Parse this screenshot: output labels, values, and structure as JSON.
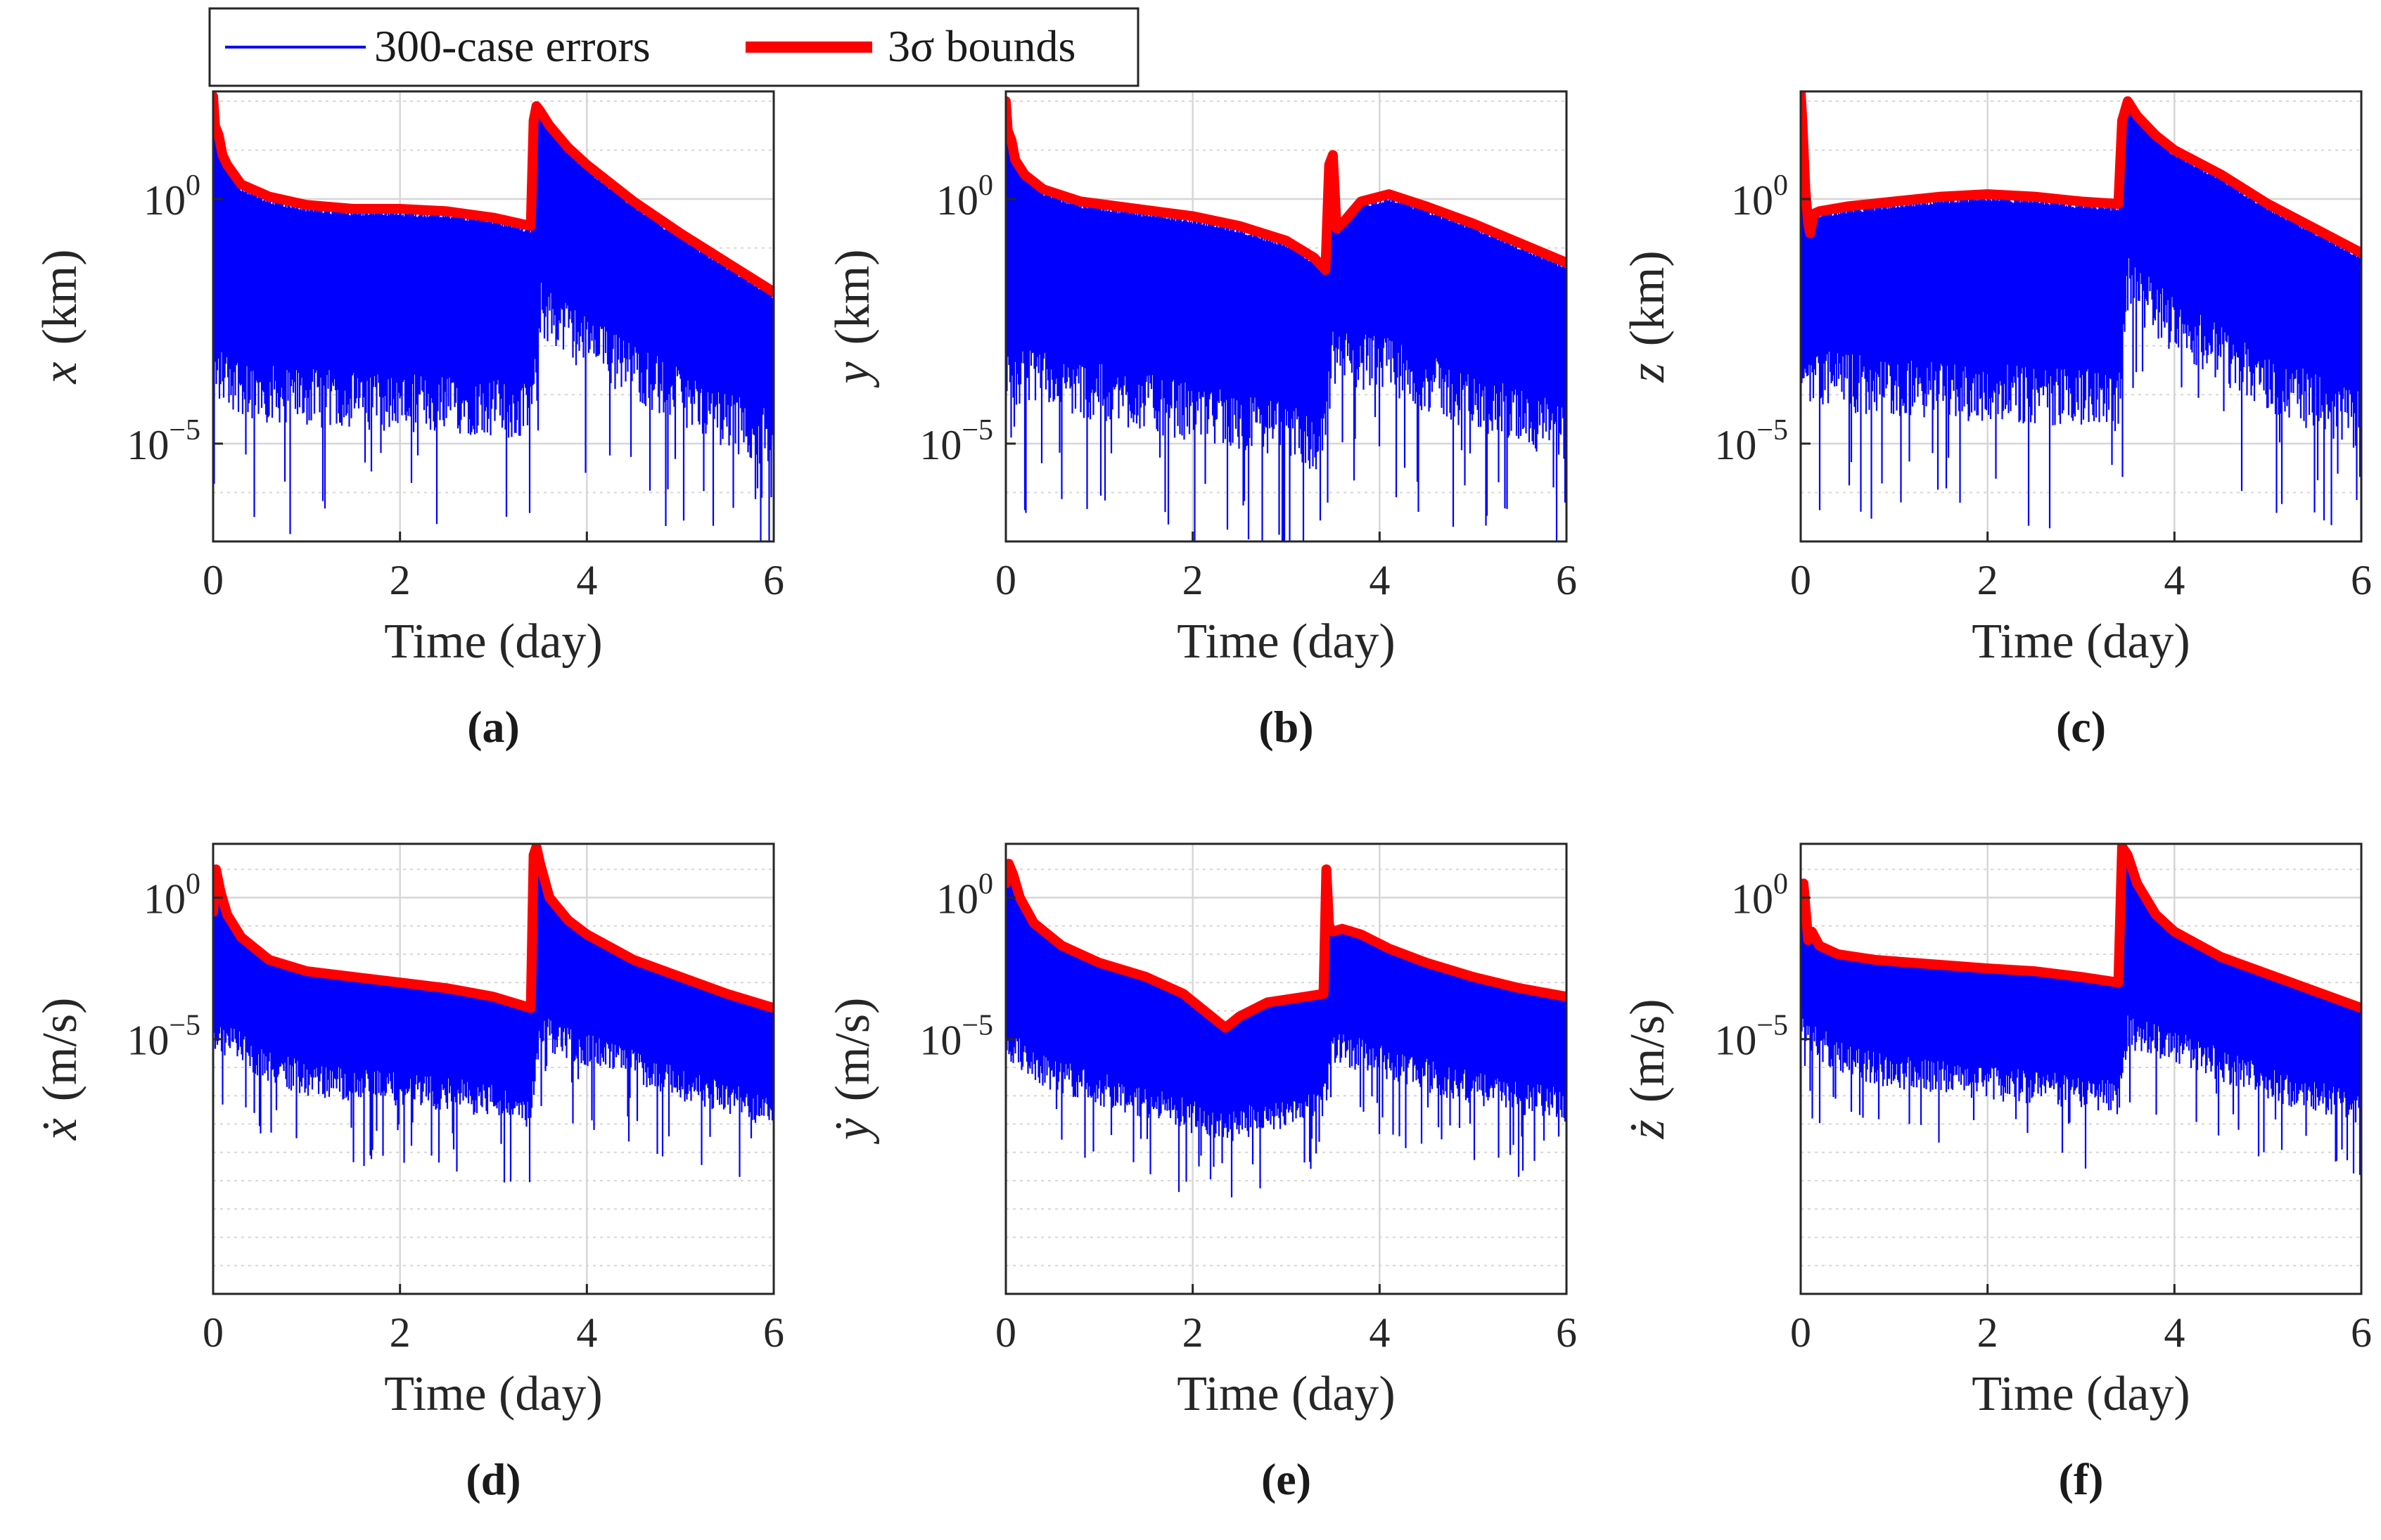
{
  "legend": {
    "errors_label": "300-case errors",
    "bounds_label": "3σ bounds",
    "location": "top-left"
  },
  "colors": {
    "errors": "#0000ff",
    "bounds": "#ff0000",
    "grid": "#d6d6d6",
    "axes": "#262626"
  },
  "chart_data": [
    {
      "panel_label": "(a)",
      "type": "line",
      "scale": "log",
      "ylabel_var": "x",
      "ylabel_unit": "(km)",
      "xlabel": "Time (day)",
      "xlim": [
        0,
        6
      ],
      "xticks": [
        0,
        2,
        4,
        6
      ],
      "ylim_log10": [
        -7,
        2.2
      ],
      "yticks": [
        {
          "exp": 0,
          "label_base": "10",
          "label_exp": "0"
        },
        {
          "exp": -5,
          "label_base": "10",
          "label_exp": "−5"
        }
      ],
      "series": [
        {
          "name": "3σ bounds",
          "t": [
            0,
            0.02,
            0.06,
            0.1,
            0.15,
            0.3,
            0.6,
            1.0,
            1.5,
            2.0,
            2.5,
            3.0,
            3.4,
            3.43,
            3.46,
            3.5,
            3.6,
            3.8,
            4.0,
            4.5,
            5.0,
            5.5,
            6.0
          ],
          "log10": [
            2.1,
            1.5,
            1.3,
            0.9,
            0.7,
            0.3,
            0.05,
            -0.12,
            -0.2,
            -0.2,
            -0.25,
            -0.38,
            -0.55,
            1.6,
            1.9,
            1.8,
            1.5,
            1.05,
            0.7,
            -0.05,
            -0.7,
            -1.3,
            -1.9
          ]
        }
      ],
      "error_floor_log10": {
        "t": [
          0,
          0.5,
          1.0,
          2.0,
          3.0,
          3.4,
          3.5,
          4.0,
          5.0,
          6.0
        ],
        "log10": [
          -3.8,
          -4.2,
          -4.3,
          -4.4,
          -4.5,
          -4.6,
          -2.5,
          -3.2,
          -4.3,
          -5.2
        ]
      }
    },
    {
      "panel_label": "(b)",
      "type": "line",
      "scale": "log",
      "ylabel_var": "y",
      "ylabel_unit": "(km)",
      "xlabel": "Time (day)",
      "xlim": [
        0,
        6
      ],
      "xticks": [
        0,
        2,
        4,
        6
      ],
      "ylim_log10": [
        -7,
        2.2
      ],
      "yticks": [
        {
          "exp": 0,
          "label_base": "10",
          "label_exp": "0"
        },
        {
          "exp": -5,
          "label_base": "10",
          "label_exp": "−5"
        }
      ],
      "series": [
        {
          "name": "3σ bounds",
          "t": [
            0,
            0.02,
            0.06,
            0.1,
            0.2,
            0.4,
            0.8,
            1.2,
            1.6,
            2.0,
            2.5,
            3.0,
            3.3,
            3.42,
            3.46,
            3.5,
            3.54,
            3.6,
            3.8,
            4.1,
            4.5,
            5.0,
            5.5,
            6.0
          ],
          "log10": [
            2.0,
            1.4,
            1.2,
            0.8,
            0.5,
            0.2,
            -0.05,
            -0.15,
            -0.25,
            -0.35,
            -0.55,
            -0.85,
            -1.2,
            -1.45,
            0.7,
            0.9,
            -0.6,
            -0.5,
            -0.05,
            0.1,
            -0.15,
            -0.5,
            -0.9,
            -1.3
          ]
        }
      ],
      "error_floor_log10": {
        "t": [
          0,
          0.5,
          1.0,
          2.0,
          3.0,
          3.4,
          3.5,
          4.0,
          5.0,
          6.0
        ],
        "log10": [
          -3.8,
          -4.0,
          -4.2,
          -4.6,
          -5.0,
          -5.3,
          -3.5,
          -3.6,
          -4.4,
          -5.0
        ]
      }
    },
    {
      "panel_label": "(c)",
      "type": "line",
      "scale": "log",
      "ylabel_var": "z",
      "ylabel_unit": "(km)",
      "xlabel": "Time (day)",
      "xlim": [
        0,
        6
      ],
      "xticks": [
        0,
        2,
        4,
        6
      ],
      "ylim_log10": [
        -7,
        2.2
      ],
      "yticks": [
        {
          "exp": 0,
          "label_base": "10",
          "label_exp": "0"
        },
        {
          "exp": -5,
          "label_base": "10",
          "label_exp": "−5"
        }
      ],
      "series": [
        {
          "name": "3σ bounds",
          "t": [
            0,
            0.02,
            0.05,
            0.08,
            0.1,
            0.14,
            0.2,
            0.5,
            1.0,
            1.5,
            2.0,
            2.5,
            3.0,
            3.4,
            3.44,
            3.5,
            3.6,
            3.8,
            4.0,
            4.5,
            5.0,
            5.5,
            6.0
          ],
          "log10": [
            2.2,
            1.5,
            0.2,
            -0.5,
            -0.7,
            -0.3,
            -0.25,
            -0.15,
            -0.05,
            0.05,
            0.1,
            0.05,
            -0.05,
            -0.1,
            1.6,
            2.0,
            1.7,
            1.3,
            1.0,
            0.5,
            -0.1,
            -0.6,
            -1.1
          ]
        }
      ],
      "error_floor_log10": {
        "t": [
          0,
          0.5,
          1.0,
          2.0,
          3.0,
          3.4,
          3.5,
          4.0,
          5.0,
          6.0
        ],
        "log10": [
          -3.8,
          -4.0,
          -4.1,
          -4.2,
          -4.3,
          -4.4,
          -2.0,
          -2.8,
          -4.0,
          -4.8
        ]
      }
    },
    {
      "panel_label": "(d)",
      "type": "line",
      "scale": "log",
      "ylabel_var": "ẋ",
      "ylabel_unit": "(m/s)",
      "xlabel": "Time (day)",
      "xlim": [
        0,
        6
      ],
      "xticks": [
        0,
        2,
        4,
        6
      ],
      "ylim_log10": [
        -14,
        1.9
      ],
      "yticks": [
        {
          "exp": 0,
          "label_base": "10",
          "label_exp": "0"
        },
        {
          "exp": -5,
          "label_base": "10",
          "label_exp": "−5"
        }
      ],
      "series": [
        {
          "name": "3σ bounds",
          "t": [
            0,
            0.03,
            0.08,
            0.15,
            0.3,
            0.6,
            1.0,
            1.5,
            2.0,
            2.5,
            3.0,
            3.4,
            3.43,
            3.46,
            3.5,
            3.6,
            3.8,
            4.0,
            4.5,
            5.0,
            5.5,
            6.0
          ],
          "log10": [
            -0.5,
            1.0,
            0.2,
            -0.6,
            -1.4,
            -2.2,
            -2.6,
            -2.8,
            -3.0,
            -3.2,
            -3.5,
            -3.9,
            1.5,
            1.8,
            1.2,
            0.0,
            -0.8,
            -1.3,
            -2.2,
            -2.8,
            -3.4,
            -3.9
          ]
        }
      ],
      "error_floor_log10": {
        "t": [
          0,
          0.5,
          1.0,
          2.0,
          3.0,
          3.4,
          3.5,
          4.0,
          5.0,
          6.0
        ],
        "log10": [
          -5.0,
          -6.0,
          -6.7,
          -7.0,
          -7.4,
          -7.8,
          -5.0,
          -5.6,
          -6.8,
          -7.9
        ]
      }
    },
    {
      "panel_label": "(e)",
      "type": "line",
      "scale": "log",
      "ylabel_var": "ẏ",
      "ylabel_unit": "(m/s)",
      "xlabel": "Time (day)",
      "xlim": [
        0,
        6
      ],
      "xticks": [
        0,
        2,
        4,
        6
      ],
      "ylim_log10": [
        -14,
        1.9
      ],
      "yticks": [
        {
          "exp": 0,
          "label_base": "10",
          "label_exp": "0"
        },
        {
          "exp": -5,
          "label_base": "10",
          "label_exp": "−5"
        }
      ],
      "series": [
        {
          "name": "3σ bounds",
          "t": [
            0,
            0.03,
            0.08,
            0.15,
            0.3,
            0.6,
            1.0,
            1.5,
            1.9,
            2.2,
            2.35,
            2.5,
            2.8,
            3.2,
            3.4,
            3.43,
            3.46,
            3.5,
            3.6,
            3.8,
            4.1,
            4.5,
            5.0,
            5.5,
            6.0
          ],
          "log10": [
            0.5,
            1.2,
            0.8,
            0.0,
            -0.9,
            -1.7,
            -2.3,
            -2.8,
            -3.4,
            -4.2,
            -4.6,
            -4.2,
            -3.7,
            -3.5,
            -3.4,
            1.0,
            -1.0,
            -1.2,
            -1.1,
            -1.3,
            -1.8,
            -2.3,
            -2.8,
            -3.2,
            -3.5
          ]
        }
      ],
      "error_floor_log10": {
        "t": [
          0,
          0.5,
          1.0,
          2.0,
          2.35,
          3.0,
          3.4,
          3.5,
          4.0,
          5.0,
          6.0
        ],
        "log10": [
          -5.5,
          -6.5,
          -7.0,
          -8.0,
          -8.3,
          -7.8,
          -7.5,
          -5.5,
          -6.0,
          -7.0,
          -7.6
        ]
      }
    },
    {
      "panel_label": "(f)",
      "type": "line",
      "scale": "log",
      "ylabel_var": "ż",
      "ylabel_unit": "(m/s)",
      "xlabel": "Time (day)",
      "xlim": [
        0,
        6
      ],
      "xticks": [
        0,
        2,
        4,
        6
      ],
      "ylim_log10": [
        -14,
        1.9
      ],
      "yticks": [
        {
          "exp": 0,
          "label_base": "10",
          "label_exp": "0"
        },
        {
          "exp": -5,
          "label_base": "10",
          "label_exp": "−5"
        }
      ],
      "series": [
        {
          "name": "3σ bounds",
          "t": [
            0,
            0.03,
            0.08,
            0.12,
            0.2,
            0.4,
            0.8,
            1.2,
            1.6,
            2.0,
            2.5,
            3.0,
            3.4,
            3.44,
            3.5,
            3.6,
            3.8,
            4.0,
            4.5,
            5.0,
            5.5,
            6.0
          ],
          "log10": [
            -0.5,
            0.5,
            -1.5,
            -1.2,
            -1.7,
            -2.0,
            -2.2,
            -2.3,
            -2.4,
            -2.5,
            -2.6,
            -2.8,
            -3.0,
            1.8,
            1.5,
            0.5,
            -0.6,
            -1.2,
            -2.1,
            -2.7,
            -3.3,
            -3.9
          ]
        }
      ],
      "error_floor_log10": {
        "t": [
          0,
          0.5,
          1.0,
          2.0,
          3.0,
          3.4,
          3.5,
          4.0,
          5.0,
          6.0
        ],
        "log10": [
          -5.0,
          -6.0,
          -6.4,
          -6.8,
          -7.1,
          -7.3,
          -5.0,
          -5.5,
          -6.8,
          -7.8
        ]
      }
    }
  ]
}
